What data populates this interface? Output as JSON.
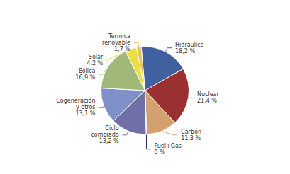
{
  "chart_data": {
    "type": "pie",
    "categories": [
      "Hidráulica",
      "Nuclear",
      "Carbón",
      "Fuel+Gas",
      "Ciclo\ncombiado",
      "Cogeneración\ny otros",
      "Eólica",
      "Solar",
      "Térmica\nrenovable"
    ],
    "values": [
      18.2,
      21.4,
      11.3,
      0.2,
      13.2,
      13.1,
      16.9,
      4.2,
      1.7
    ],
    "value_labels": [
      "18,2 %",
      "21,4 %",
      "11,3 %",
      "0 %",
      "13,2 %",
      "13,1 %",
      "16,9 %",
      "4,2 %",
      "1,7 %"
    ],
    "colors": [
      "#4060a0",
      "#9b3030",
      "#d4a070",
      "#2a2a5a",
      "#7070a8",
      "#8090c8",
      "#a0b878",
      "#e8e040",
      "#e8c060"
    ],
    "data_labels": true
  }
}
